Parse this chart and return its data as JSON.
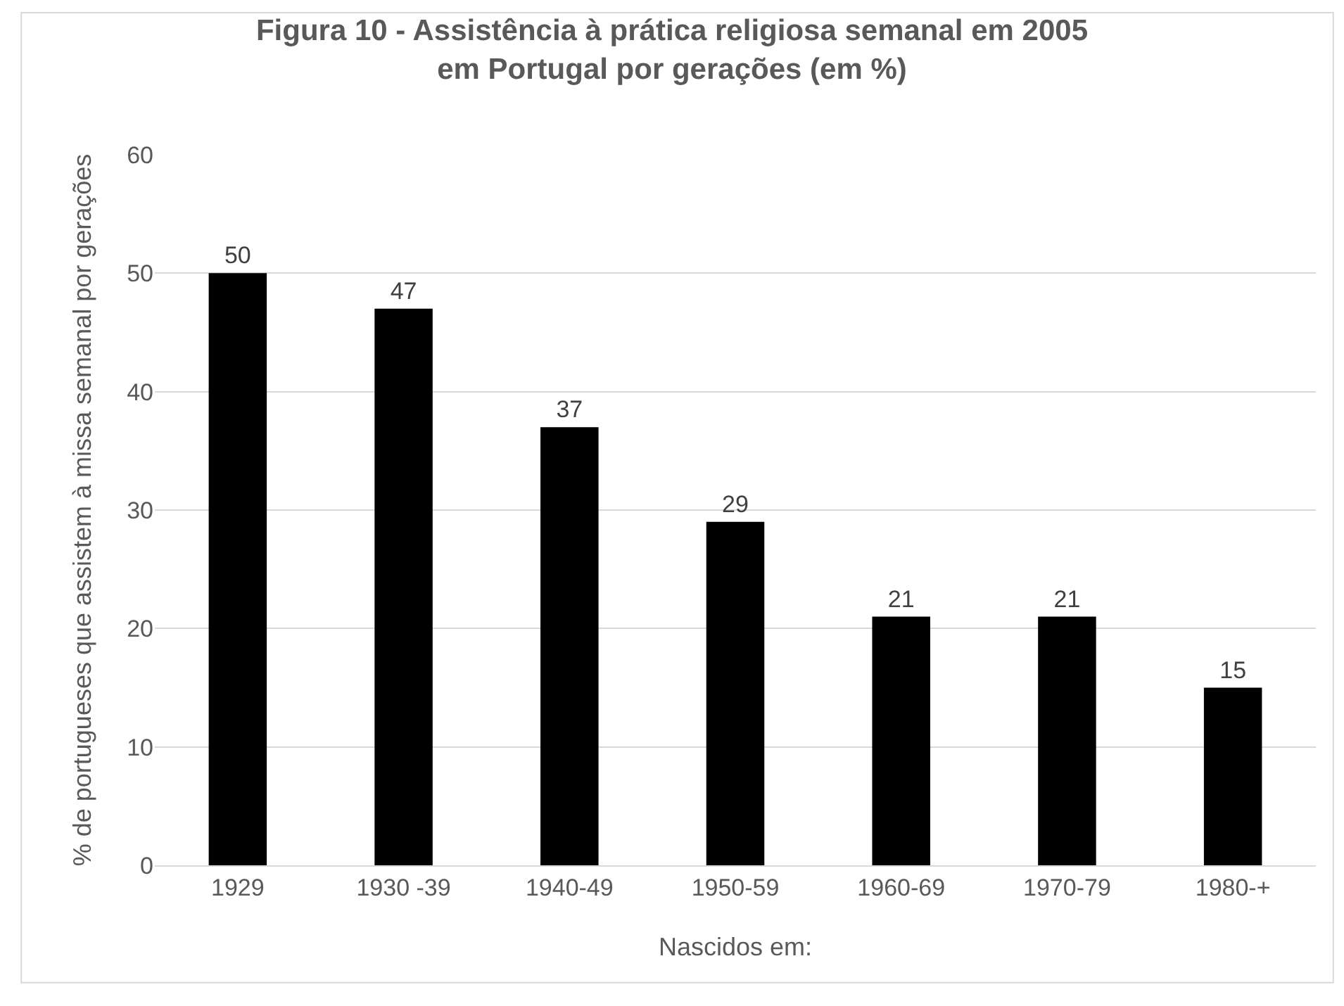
{
  "chart_data": {
    "type": "bar",
    "title": "Figura 10 - Assistência à prática religiosa semanal em 2005 em Portugal por gerações (em %)",
    "xlabel": "Nascidos em:",
    "ylabel": "% de portugueses que assistem à missa semanal por gerações",
    "categories": [
      "1929",
      "1930 -39",
      "1940-49",
      "1950-59",
      "1960-69",
      "1970-79",
      "1980-+"
    ],
    "values": [
      50,
      47,
      37,
      29,
      21,
      21,
      15
    ],
    "color": "#000000",
    "ylim": [
      0,
      60
    ],
    "yticks": [
      0,
      10,
      20,
      30,
      40,
      50,
      60
    ],
    "grid": "y",
    "data_labels": true,
    "legend": false
  }
}
